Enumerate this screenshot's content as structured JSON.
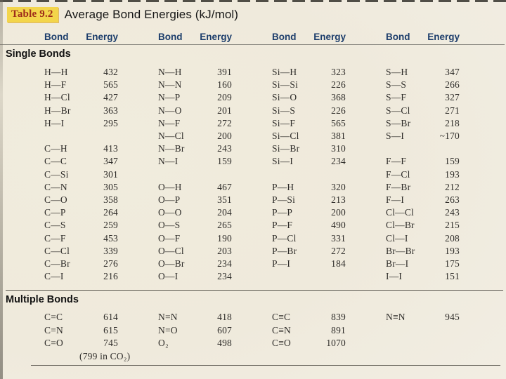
{
  "header": {
    "table_label": "Table 9.2",
    "title": "Average Bond Energies (kJ/mol)"
  },
  "column_headers": {
    "bond": "Bond",
    "energy": "Energy"
  },
  "sections": {
    "single_label": "Single Bonds",
    "multiple_label": "Multiple Bonds"
  },
  "single_rows": [
    {
      "b1": "H—H",
      "e1": "432",
      "b2": "N—H",
      "e2": "391",
      "b3": "Si—H",
      "e3": "323",
      "b4": "S—H",
      "e4": "347"
    },
    {
      "b1": "H—F",
      "e1": "565",
      "b2": "N—N",
      "e2": "160",
      "b3": "Si—Si",
      "e3": "226",
      "b4": "S—S",
      "e4": "266"
    },
    {
      "b1": "H—Cl",
      "e1": "427",
      "b2": "N—P",
      "e2": "209",
      "b3": "Si—O",
      "e3": "368",
      "b4": "S—F",
      "e4": "327"
    },
    {
      "b1": "H—Br",
      "e1": "363",
      "b2": "N—O",
      "e2": "201",
      "b3": "Si—S",
      "e3": "226",
      "b4": "S—Cl",
      "e4": "271"
    },
    {
      "b1": "H—I",
      "e1": "295",
      "b2": "N—F",
      "e2": "272",
      "b3": "Si—F",
      "e3": "565",
      "b4": "S—Br",
      "e4": "218"
    },
    {
      "b1": "",
      "e1": "",
      "b2": "N—Cl",
      "e2": "200",
      "b3": "Si—Cl",
      "e3": "381",
      "b4": "S—I",
      "e4": "~170"
    },
    {
      "b1": "C—H",
      "e1": "413",
      "b2": "N—Br",
      "e2": "243",
      "b3": "Si—Br",
      "e3": "310",
      "b4": "",
      "e4": ""
    },
    {
      "b1": "C—C",
      "e1": "347",
      "b2": "N—I",
      "e2": "159",
      "b3": "Si—I",
      "e3": "234",
      "b4": "F—F",
      "e4": "159"
    },
    {
      "b1": "C—Si",
      "e1": "301",
      "b2": "",
      "e2": "",
      "b3": "",
      "e3": "",
      "b4": "F—Cl",
      "e4": "193"
    },
    {
      "b1": "C—N",
      "e1": "305",
      "b2": "O—H",
      "e2": "467",
      "b3": "P—H",
      "e3": "320",
      "b4": "F—Br",
      "e4": "212"
    },
    {
      "b1": "C—O",
      "e1": "358",
      "b2": "O—P",
      "e2": "351",
      "b3": "P—Si",
      "e3": "213",
      "b4": "F—I",
      "e4": "263"
    },
    {
      "b1": "C—P",
      "e1": "264",
      "b2": "O—O",
      "e2": "204",
      "b3": "P—P",
      "e3": "200",
      "b4": "Cl—Cl",
      "e4": "243"
    },
    {
      "b1": "C—S",
      "e1": "259",
      "b2": "O—S",
      "e2": "265",
      "b3": "P—F",
      "e3": "490",
      "b4": "Cl—Br",
      "e4": "215"
    },
    {
      "b1": "C—F",
      "e1": "453",
      "b2": "O—F",
      "e2": "190",
      "b3": "P—Cl",
      "e3": "331",
      "b4": "Cl—I",
      "e4": "208"
    },
    {
      "b1": "C—Cl",
      "e1": "339",
      "b2": "O—Cl",
      "e2": "203",
      "b3": "P—Br",
      "e3": "272",
      "b4": "Br—Br",
      "e4": "193"
    },
    {
      "b1": "C—Br",
      "e1": "276",
      "b2": "O—Br",
      "e2": "234",
      "b3": "P—I",
      "e3": "184",
      "b4": "Br—I",
      "e4": "175"
    },
    {
      "b1": "C—I",
      "e1": "216",
      "b2": "O—I",
      "e2": "234",
      "b3": "",
      "e3": "",
      "b4": "I—I",
      "e4": "151"
    }
  ],
  "multiple_rows": [
    {
      "b1": "C=C",
      "e1": "614",
      "b2": "N=N",
      "e2": "418",
      "b3": "C≡C",
      "e3": "839",
      "b4": "N≡N",
      "e4": "945"
    },
    {
      "b1": "C=N",
      "e1": "615",
      "b2": "N=O",
      "e2": "607",
      "b3": "C≡N",
      "e3": "891",
      "b4": "",
      "e4": ""
    },
    {
      "b1": "C=O",
      "e1": "745",
      "b2": "O₂",
      "e2": "498",
      "b3": "C≡O",
      "e3": "1070",
      "b4": "",
      "e4": ""
    }
  ],
  "multiple_note": "(799 in CO₂)",
  "colors": {
    "page_background": "#f0ebdd",
    "header_navy": "#1c3d6b",
    "table_label_red": "#9e2c1a",
    "highlight_yellow": "#f3d54b",
    "text_dark": "#2e2c29"
  }
}
